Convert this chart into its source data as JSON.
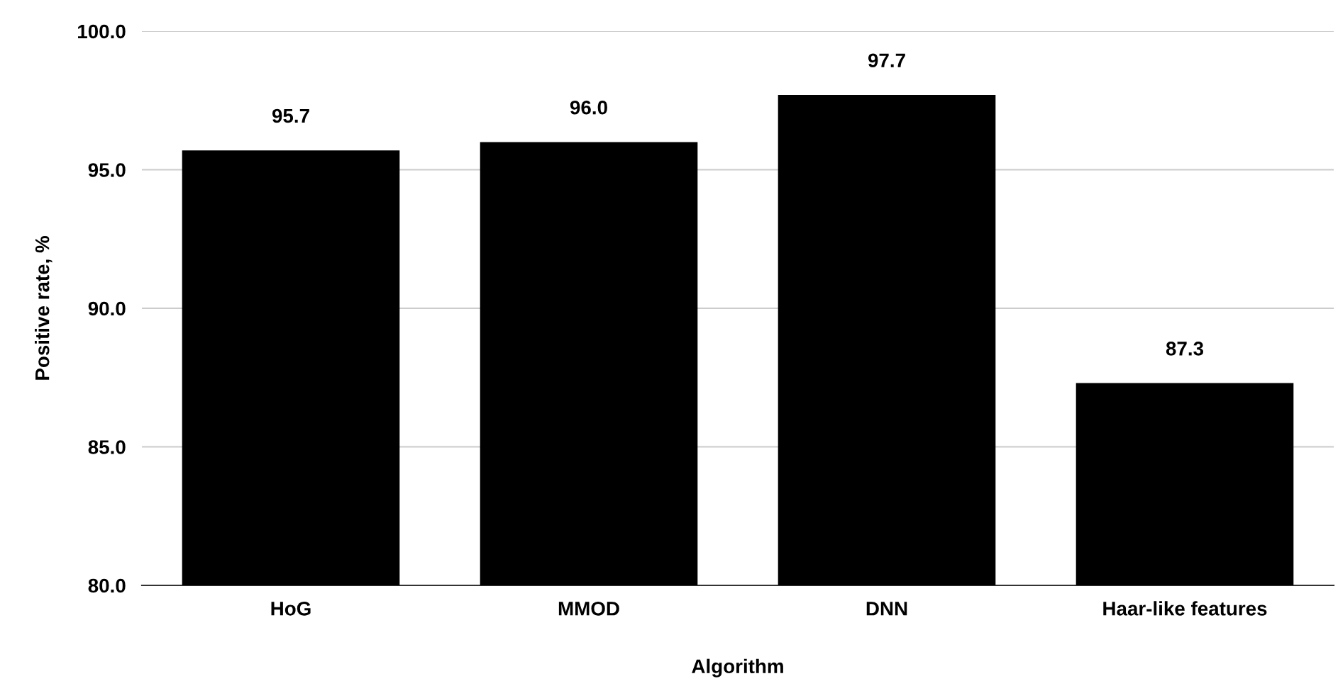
{
  "chart_data": {
    "type": "bar",
    "xlabel": "Algorithm",
    "ylabel": "Positive rate, %",
    "categories": [
      "HoG",
      "MMOD",
      "DNN",
      "Haar-like features"
    ],
    "values": [
      95.7,
      96.0,
      97.7,
      87.3
    ],
    "color": "#000000",
    "value_labels": [
      "95.7",
      "96.0",
      "97.7",
      "87.3"
    ],
    "ylim": [
      80,
      100
    ],
    "yticks": [
      {
        "value": 80,
        "label": "80.0"
      },
      {
        "value": 85,
        "label": "85.0"
      },
      {
        "value": 90,
        "label": "90.0"
      },
      {
        "value": 95,
        "label": "95.0"
      },
      {
        "value": 100,
        "label": "100.0"
      }
    ],
    "grid": "y",
    "legend": false
  }
}
